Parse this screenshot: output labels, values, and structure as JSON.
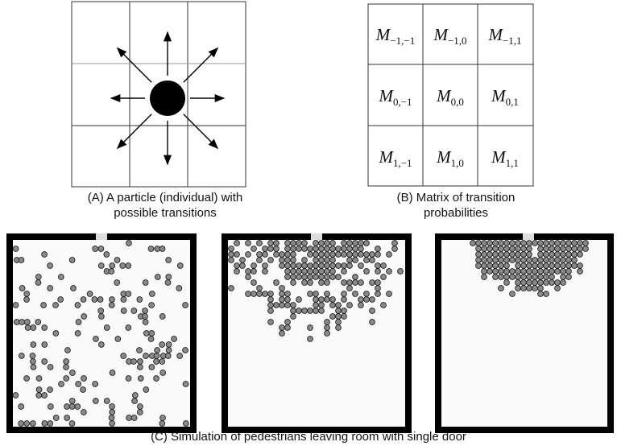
{
  "panel_a": {
    "caption": [
      "(A) A particle (individual) with",
      "possible transitions"
    ]
  },
  "panel_b": {
    "caption": [
      "(B) Matrix of transition",
      "probabilities"
    ],
    "cells": [
      [
        {
          "symbol": "M",
          "subscript": "−1,−1"
        },
        {
          "symbol": "M",
          "subscript": "−1,0"
        },
        {
          "symbol": "M",
          "subscript": "−1,1"
        }
      ],
      [
        {
          "symbol": "M",
          "subscript": "0,−1"
        },
        {
          "symbol": "M",
          "subscript": "0,0"
        },
        {
          "symbol": "M",
          "subscript": "0,1"
        }
      ],
      [
        {
          "symbol": "M",
          "subscript": "1,−1"
        },
        {
          "symbol": "M",
          "subscript": "1,0"
        },
        {
          "symbol": "M",
          "subscript": "1,1"
        }
      ]
    ]
  },
  "panel_c": {
    "caption": "(C) Simulation of pedestrians leaving room with single door"
  }
}
